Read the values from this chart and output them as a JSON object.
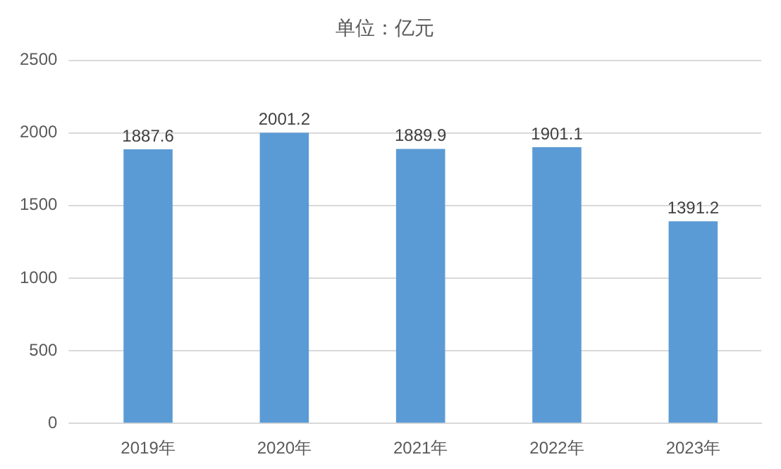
{
  "chart_data": {
    "type": "bar",
    "title": "单位：亿元",
    "categories": [
      "2019年",
      "2020年",
      "2021年",
      "2022年",
      "2023年"
    ],
    "values": [
      1887.6,
      2001.2,
      1889.9,
      1901.1,
      1391.2
    ],
    "color": "#5b9bd5",
    "ylim": [
      0,
      2500
    ],
    "yticks": [
      0,
      500,
      1000,
      1500,
      2000,
      2500
    ],
    "grid": "y",
    "data_labels": true,
    "legend": false
  }
}
